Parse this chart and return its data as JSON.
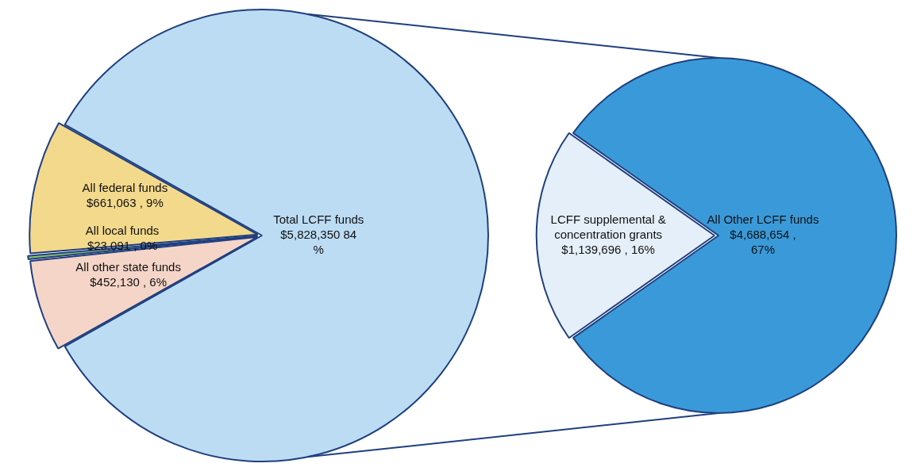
{
  "chart_data": [
    {
      "type": "pie",
      "categories": [
        "Total LCFF funds",
        "All other state funds",
        "All local funds",
        "All federal funds"
      ],
      "values": [
        5828350,
        452130,
        23091,
        661063
      ],
      "colors": [
        "#bcdcf4",
        "#f5d5c8",
        "#8fbf6a",
        "#f3d98c"
      ],
      "value_labels": [
        "$5,828,350 84 %",
        "$452,130 , 6%",
        "$23,091 , 0%",
        "$661,063 , 9%"
      ]
    },
    {
      "type": "pie",
      "categories": [
        "LCFF supplemental & concentration grants",
        "All Other LCFF funds"
      ],
      "values": [
        1139696,
        4688654
      ],
      "colors": [
        "#e4eff9",
        "#3a9ad9"
      ],
      "value_labels": [
        "$1,139,696 , 16%",
        "$4,688,654 , 67%"
      ]
    }
  ]
}
